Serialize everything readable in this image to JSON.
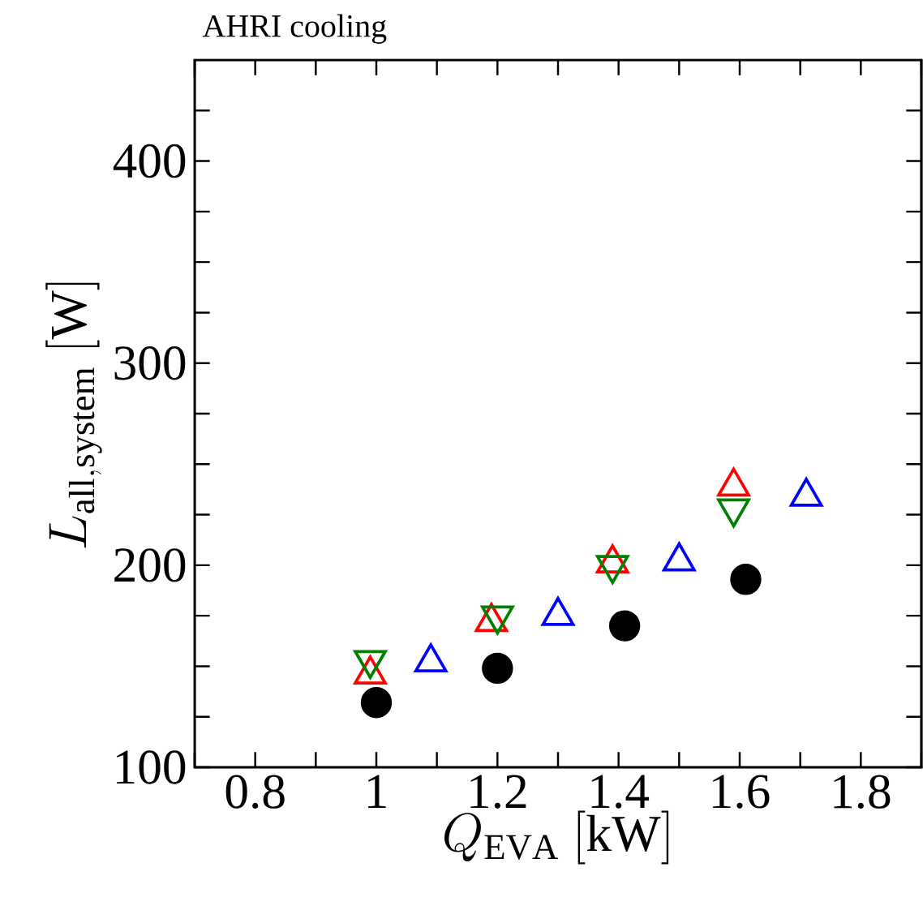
{
  "chart_data": {
    "type": "scatter",
    "title": "AHRI cooling",
    "xlabel": "Q_{\\mathrm{EVA}}\\ [\\mathrm{kW}]",
    "ylabel": "L_{\\mathrm{all,system}}\\ [\\mathrm{W}]",
    "xlim": [
      0.7,
      1.9
    ],
    "ylim": [
      100,
      450
    ],
    "xticks": [
      {
        "value": 0.7,
        "label": null
      },
      0.8,
      {
        "value": 0.9,
        "label": null
      },
      1,
      {
        "value": 1.1,
        "label": null
      },
      1.2,
      {
        "value": 1.3,
        "label": null
      },
      1.4,
      {
        "value": 1.5,
        "label": null
      },
      1.6,
      {
        "value": 1.7,
        "label": null
      },
      1.8,
      {
        "value": 1.9,
        "label": null
      }
    ],
    "yticks": [
      100,
      {
        "value": 125,
        "label": null
      },
      {
        "value": 150,
        "label": null
      },
      {
        "value": 175,
        "label": null
      },
      200,
      {
        "value": 225,
        "label": null
      },
      {
        "value": 250,
        "label": null
      },
      {
        "value": 275,
        "label": null
      },
      300,
      {
        "value": 325,
        "label": null
      },
      {
        "value": 350,
        "label": null
      },
      {
        "value": 375,
        "label": null
      },
      400,
      {
        "value": 425,
        "label": null
      }
    ],
    "grid": false,
    "series": [
      {
        "color": "#000000",
        "marker": "circle",
        "x": [
          1.0,
          1.2,
          1.41,
          1.61
        ],
        "values": [
          132,
          149,
          170,
          193
        ]
      },
      {
        "color": "#ff0000",
        "marker": "triangle",
        "x": [
          0.99,
          1.19,
          1.39,
          1.59
        ],
        "values": [
          146,
          172,
          201,
          239
        ]
      },
      {
        "color": "#008000",
        "marker": "triangle-down",
        "x": [
          0.99,
          1.2,
          1.39,
          1.59
        ],
        "values": [
          153,
          175,
          200,
          228
        ]
      },
      {
        "color": "#0000ff",
        "marker": "triangle",
        "x": [
          1.09,
          1.3,
          1.5,
          1.71
        ],
        "values": [
          152,
          175,
          202,
          234
        ]
      }
    ]
  }
}
